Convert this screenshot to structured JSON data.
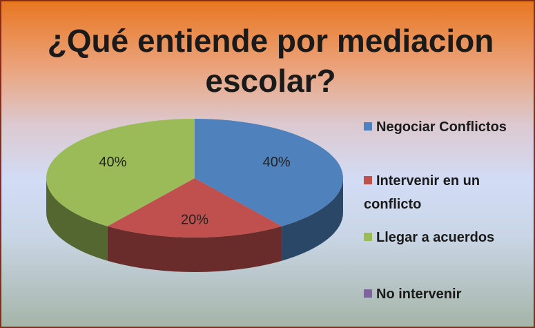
{
  "chart_data": {
    "type": "pie",
    "title": "¿Qué entiende por mediacion escolar?",
    "categories": [
      "Negociar Conflictos",
      "Intervenir en un conflicto",
      "Llegar a acuerdos",
      "No intervenir"
    ],
    "values": [
      40,
      20,
      40,
      0
    ],
    "value_labels": [
      "40%",
      "20%",
      "40%",
      null
    ],
    "colors": [
      "#4f81bd",
      "#c0504d",
      "#9bbb59",
      "#8064a2"
    ],
    "legend": "right"
  }
}
